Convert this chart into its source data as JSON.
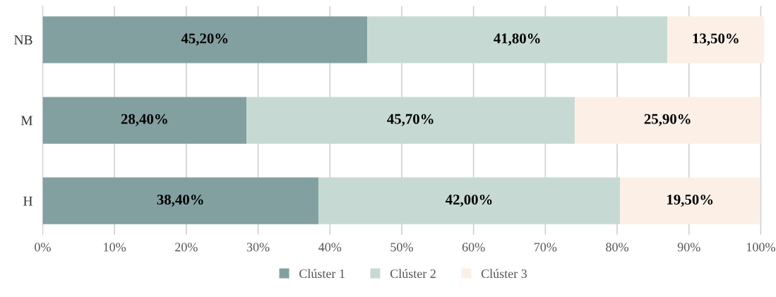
{
  "chart_data": {
    "type": "bar",
    "orientation": "horizontal",
    "stacked": true,
    "categories": [
      "NB",
      "M",
      "H"
    ],
    "series": [
      {
        "name": "Clúster 1",
        "color": "#82a09f",
        "values": [
          45.2,
          28.4,
          38.4
        ],
        "value_labels": [
          "45,20%",
          "28,40%",
          "38,40%"
        ]
      },
      {
        "name": "Clúster 2",
        "color": "#c6dad3",
        "values": [
          41.8,
          45.7,
          42.0
        ],
        "value_labels": [
          "41,80%",
          "45,70%",
          "42,00%"
        ]
      },
      {
        "name": "Clúster 3",
        "color": "#fcf0e6",
        "values": [
          13.5,
          25.9,
          19.5
        ],
        "value_labels": [
          "13,50%",
          "25,90%",
          "19,50%"
        ]
      }
    ],
    "xlim": [
      0,
      100.5
    ],
    "xticks": [
      {
        "value": 0,
        "label": "0%"
      },
      {
        "value": 10,
        "label": "10%"
      },
      {
        "value": 20,
        "label": "20%"
      },
      {
        "value": 30,
        "label": "30%"
      },
      {
        "value": 40,
        "label": "40%"
      },
      {
        "value": 50,
        "label": "50%"
      },
      {
        "value": 60,
        "label": "60%"
      },
      {
        "value": 70,
        "label": "70%"
      },
      {
        "value": 80,
        "label": "80%"
      },
      {
        "value": 90,
        "label": "90%"
      },
      {
        "value": 100,
        "label": "100%"
      }
    ],
    "grid": "x",
    "legend": "bottom"
  }
}
